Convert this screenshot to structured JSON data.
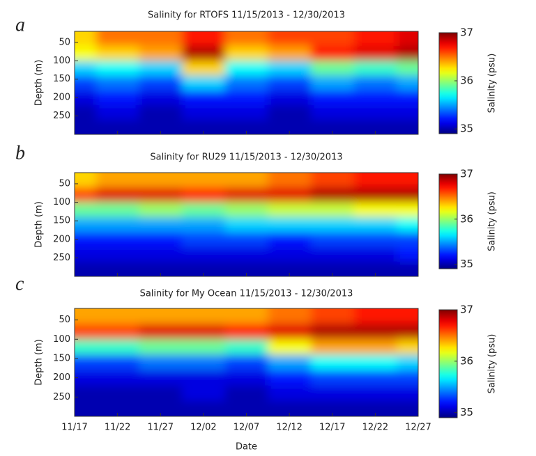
{
  "chart_data": [
    {
      "type": "heatmap",
      "panel": "a",
      "title": "Salinity for RTOFS 11/15/2013 - 12/30/2013",
      "ylabel": "Depth (m)",
      "colorbar_label": "Salinity (psu)",
      "colormap": "jet",
      "x": [
        "11/17",
        "11/22",
        "11/27",
        "12/02",
        "12/07",
        "12/12",
        "12/17",
        "12/22",
        "12/27"
      ],
      "y": [
        40,
        80,
        120,
        160,
        200,
        240,
        280
      ],
      "z": [
        [
          36.3,
          36.5,
          36.5,
          36.7,
          36.5,
          36.6,
          36.6,
          36.7,
          36.8
        ],
        [
          36.2,
          36.3,
          36.4,
          36.9,
          36.3,
          36.4,
          36.7,
          36.8,
          36.9
        ],
        [
          35.6,
          35.7,
          35.6,
          36.3,
          35.7,
          35.6,
          35.9,
          35.8,
          35.9
        ],
        [
          35.3,
          35.4,
          35.3,
          35.6,
          35.4,
          35.3,
          35.5,
          35.4,
          35.5
        ],
        [
          35.1,
          35.2,
          35.1,
          35.2,
          35.2,
          35.1,
          35.2,
          35.2,
          35.2
        ],
        [
          35.0,
          35.1,
          35.0,
          35.1,
          35.1,
          35.0,
          35.1,
          35.1,
          35.1
        ],
        [
          35.0,
          35.0,
          35.0,
          35.0,
          35.0,
          35.0,
          35.0,
          35.0,
          35.0
        ]
      ],
      "ylim": [
        20,
        300
      ],
      "yticks": [
        50,
        100,
        150,
        200,
        250
      ],
      "clim": [
        34.9,
        37
      ],
      "cticks": [
        35,
        36,
        37
      ]
    },
    {
      "type": "heatmap",
      "panel": "b",
      "title": "Salinity for RU29 11/15/2013 - 12/30/2013",
      "ylabel": "Depth (m)",
      "colorbar_label": "Salinity (psu)",
      "colormap": "jet",
      "x": [
        "11/17",
        "11/22",
        "11/27",
        "12/02",
        "12/07",
        "12/12",
        "12/17",
        "12/22",
        "12/27"
      ],
      "y": [
        40,
        80,
        120,
        160,
        200,
        240,
        280
      ],
      "z": [
        [
          36.3,
          36.4,
          36.4,
          36.4,
          36.4,
          36.5,
          36.6,
          36.7,
          36.7
        ],
        [
          36.6,
          36.8,
          36.8,
          36.7,
          36.8,
          36.8,
          36.9,
          36.9,
          36.9
        ],
        [
          35.9,
          35.9,
          36.0,
          35.9,
          36.0,
          36.1,
          36.1,
          36.2,
          36.2
        ],
        [
          35.5,
          35.5,
          35.5,
          35.5,
          35.6,
          35.6,
          35.6,
          35.6,
          35.7
        ],
        [
          35.2,
          35.2,
          35.2,
          35.3,
          35.3,
          35.2,
          35.3,
          35.3,
          35.3
        ],
        [
          35.1,
          35.1,
          35.1,
          35.1,
          35.1,
          35.1,
          35.1,
          35.1,
          35.2
        ],
        [
          35.0,
          35.0,
          35.0,
          35.0,
          35.0,
          35.0,
          35.0,
          35.0,
          35.0
        ]
      ],
      "ylim": [
        20,
        300
      ],
      "yticks": [
        50,
        100,
        150,
        200,
        250
      ],
      "clim": [
        34.9,
        37
      ],
      "cticks": [
        35,
        36,
        37
      ]
    },
    {
      "type": "heatmap",
      "panel": "c",
      "title": "Salinity for My Ocean 11/15/2013 - 12/30/2013",
      "ylabel": "Depth (m)",
      "xlabel": "Date",
      "colorbar_label": "Salinity (psu)",
      "colormap": "jet",
      "x": [
        "11/17",
        "11/22",
        "11/27",
        "12/02",
        "12/07",
        "12/12",
        "12/17",
        "12/22",
        "12/27"
      ],
      "y": [
        40,
        80,
        120,
        160,
        200,
        240,
        280
      ],
      "z": [
        [
          36.4,
          36.4,
          36.4,
          36.4,
          36.4,
          36.5,
          36.6,
          36.7,
          36.7
        ],
        [
          36.6,
          36.6,
          36.8,
          36.8,
          36.7,
          36.8,
          36.9,
          36.9,
          36.9
        ],
        [
          35.8,
          35.8,
          35.9,
          35.9,
          35.8,
          36.2,
          36.4,
          36.4,
          36.3
        ],
        [
          35.3,
          35.3,
          35.4,
          35.4,
          35.3,
          35.5,
          35.7,
          35.7,
          35.6
        ],
        [
          35.1,
          35.1,
          35.1,
          35.1,
          35.1,
          35.2,
          35.3,
          35.3,
          35.3
        ],
        [
          35.0,
          35.0,
          35.0,
          35.1,
          35.0,
          35.1,
          35.1,
          35.1,
          35.1
        ],
        [
          35.0,
          35.0,
          35.0,
          35.0,
          35.0,
          35.0,
          35.0,
          35.0,
          35.0
        ]
      ],
      "ylim": [
        20,
        300
      ],
      "yticks": [
        50,
        100,
        150,
        200,
        250
      ],
      "clim": [
        34.9,
        37
      ],
      "cticks": [
        35,
        36,
        37
      ]
    }
  ]
}
